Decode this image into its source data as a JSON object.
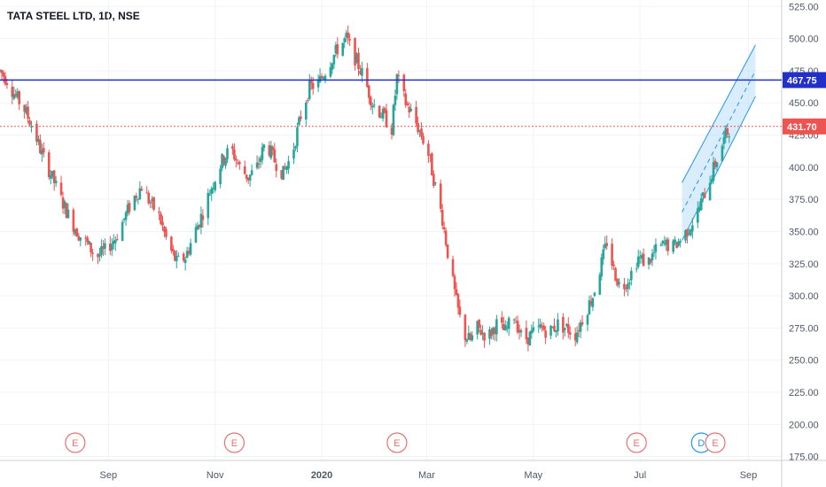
{
  "header": {
    "title": "TATA STEEL LTD, 1D, NSE"
  },
  "colors": {
    "up": "#26a69a",
    "down": "#ef5350",
    "resistance": "#2230c9",
    "last_price": "#ef5350",
    "channel_fill": "#bbdefb",
    "channel_line": "#2196f3",
    "grid": "#f0f3fa",
    "axis_text": "#4f5966"
  },
  "chart_data": {
    "type": "candlestick",
    "title": "TATA STEEL LTD, 1D, NSE",
    "x_tick_labels": [
      "Sep",
      "Nov",
      "2020",
      "Mar",
      "May",
      "Jul",
      "Sep"
    ],
    "y_tick_labels": [
      "525.00",
      "500.00",
      "475.00",
      "450.00",
      "425.00",
      "400.00",
      "375.00",
      "350.00",
      "325.00",
      "300.00",
      "275.00",
      "250.00",
      "225.00",
      "200.00",
      "175.00"
    ],
    "ylim": [
      172,
      530
    ],
    "horizontal_lines": [
      {
        "value": 467.75,
        "label": "467.75",
        "style": "solid"
      },
      {
        "value": 431.7,
        "label": "431.70",
        "style": "dotted"
      }
    ],
    "events": [
      {
        "label": "E",
        "date": "2019-08-13"
      },
      {
        "label": "E",
        "date": "2019-11-12"
      },
      {
        "label": "E",
        "date": "2020-02-13"
      },
      {
        "label": "E",
        "date": "2020-06-29"
      },
      {
        "label": "D",
        "date": "2020-08-05"
      },
      {
        "label": "E",
        "date": "2020-08-13"
      }
    ],
    "close_path": [
      [
        "2019-07-01",
        475
      ],
      [
        "2019-07-05",
        468
      ],
      [
        "2019-07-10",
        455
      ],
      [
        "2019-07-15",
        445
      ],
      [
        "2019-07-20",
        430
      ],
      [
        "2019-07-25",
        410
      ],
      [
        "2019-07-30",
        395
      ],
      [
        "2019-08-05",
        375
      ],
      [
        "2019-08-10",
        360
      ],
      [
        "2019-08-15",
        348
      ],
      [
        "2019-08-20",
        340
      ],
      [
        "2019-08-25",
        330
      ],
      [
        "2019-08-30",
        335
      ],
      [
        "2019-09-05",
        345
      ],
      [
        "2019-09-10",
        360
      ],
      [
        "2019-09-15",
        375
      ],
      [
        "2019-09-20",
        385
      ],
      [
        "2019-09-25",
        372
      ],
      [
        "2019-09-30",
        362
      ],
      [
        "2019-10-05",
        340
      ],
      [
        "2019-10-10",
        326
      ],
      [
        "2019-10-15",
        330
      ],
      [
        "2019-10-20",
        348
      ],
      [
        "2019-10-25",
        365
      ],
      [
        "2019-10-30",
        385
      ],
      [
        "2019-11-05",
        405
      ],
      [
        "2019-11-10",
        415
      ],
      [
        "2019-11-15",
        400
      ],
      [
        "2019-11-20",
        392
      ],
      [
        "2019-11-25",
        400
      ],
      [
        "2019-11-30",
        420
      ],
      [
        "2019-12-05",
        405
      ],
      [
        "2019-12-10",
        395
      ],
      [
        "2019-12-15",
        410
      ],
      [
        "2019-12-20",
        440
      ],
      [
        "2019-12-25",
        462
      ],
      [
        "2019-12-30",
        465
      ],
      [
        "2020-01-05",
        480
      ],
      [
        "2020-01-10",
        492
      ],
      [
        "2020-01-15",
        500
      ],
      [
        "2020-01-20",
        485
      ],
      [
        "2020-01-25",
        470
      ],
      [
        "2020-01-30",
        450
      ],
      [
        "2020-02-05",
        440
      ],
      [
        "2020-02-10",
        430
      ],
      [
        "2020-02-13",
        470
      ],
      [
        "2020-02-18",
        450
      ],
      [
        "2020-02-22",
        440
      ],
      [
        "2020-02-27",
        425
      ],
      [
        "2020-03-02",
        410
      ],
      [
        "2020-03-06",
        385
      ],
      [
        "2020-03-10",
        360
      ],
      [
        "2020-03-14",
        325
      ],
      [
        "2020-03-18",
        295
      ],
      [
        "2020-03-22",
        270
      ],
      [
        "2020-03-26",
        265
      ],
      [
        "2020-03-30",
        275
      ],
      [
        "2020-04-05",
        268
      ],
      [
        "2020-04-10",
        278
      ],
      [
        "2020-04-15",
        272
      ],
      [
        "2020-04-20",
        285
      ],
      [
        "2020-04-25",
        265
      ],
      [
        "2020-04-30",
        270
      ],
      [
        "2020-05-05",
        275
      ],
      [
        "2020-05-10",
        272
      ],
      [
        "2020-05-15",
        278
      ],
      [
        "2020-05-20",
        275
      ],
      [
        "2020-05-25",
        270
      ],
      [
        "2020-05-30",
        285
      ],
      [
        "2020-06-04",
        300
      ],
      [
        "2020-06-08",
        320
      ],
      [
        "2020-06-12",
        342
      ],
      [
        "2020-06-16",
        320
      ],
      [
        "2020-06-20",
        305
      ],
      [
        "2020-06-25",
        315
      ],
      [
        "2020-06-30",
        330
      ],
      [
        "2020-07-05",
        325
      ],
      [
        "2020-07-10",
        335
      ],
      [
        "2020-07-15",
        340
      ],
      [
        "2020-07-20",
        338
      ],
      [
        "2020-07-25",
        345
      ],
      [
        "2020-07-30",
        355
      ],
      [
        "2020-08-03",
        365
      ],
      [
        "2020-08-07",
        380
      ],
      [
        "2020-08-11",
        395
      ],
      [
        "2020-08-15",
        410
      ],
      [
        "2020-08-19",
        425
      ],
      [
        "2020-08-22",
        431.7
      ]
    ],
    "channel": {
      "start_date": "2020-07-25",
      "end_date": "2020-09-05",
      "upper": [
        388,
        495
      ],
      "mid": [
        365,
        475
      ],
      "lower": [
        343,
        455
      ]
    }
  }
}
